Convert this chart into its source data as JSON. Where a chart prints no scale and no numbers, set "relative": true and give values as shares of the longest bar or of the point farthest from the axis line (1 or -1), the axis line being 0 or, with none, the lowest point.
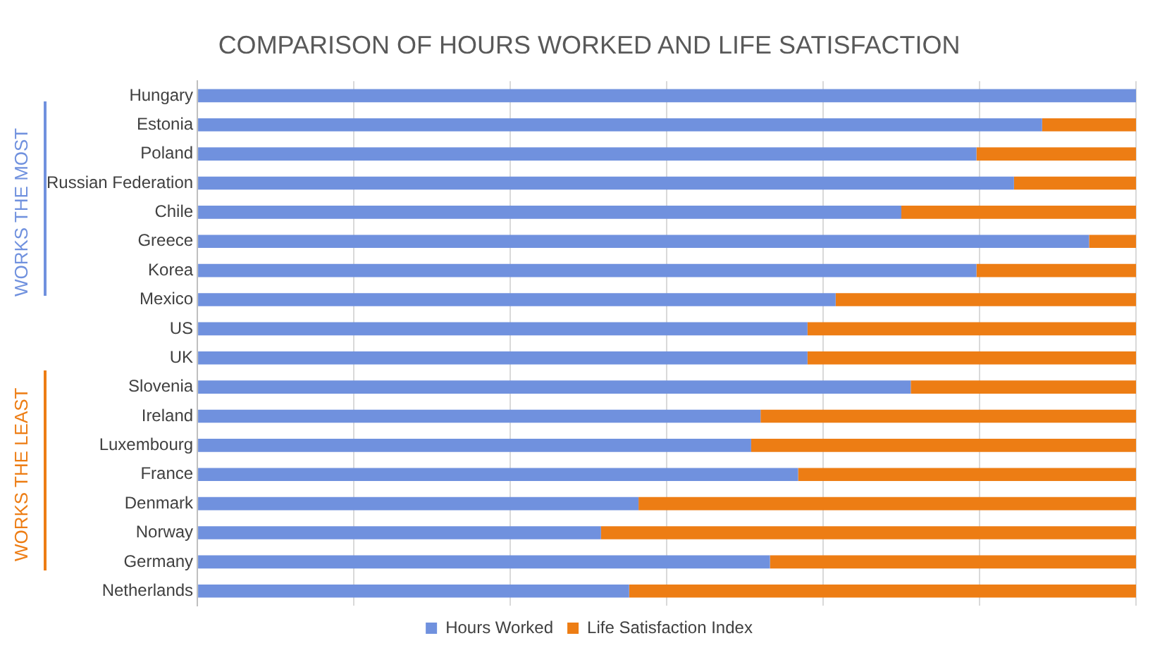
{
  "chart_data": {
    "type": "bar",
    "orientation": "horizontal",
    "stacked": true,
    "relative": true,
    "title": "COMPARISON OF HOURS WORKED AND LIFE SATISFACTION",
    "categories": [
      "Hungary",
      "Estonia",
      "Poland",
      "Russian Federation",
      "Chile",
      "Greece",
      "Korea",
      "Mexico",
      "US",
      "UK",
      "Slovenia",
      "Ireland",
      "Luxembourg",
      "France",
      "Denmark",
      "Norway",
      "Germany",
      "Netherlands"
    ],
    "series": [
      {
        "name": "Hours Worked",
        "color": "#7091de",
        "values": [
          1.0,
          0.9,
          0.83,
          0.87,
          0.75,
          0.95,
          0.83,
          0.68,
          0.65,
          0.65,
          0.76,
          0.6,
          0.59,
          0.64,
          0.47,
          0.43,
          0.61,
          0.46
        ]
      },
      {
        "name": "Life Satisfaction Index",
        "color": "#ed7d14",
        "values": [
          0.0,
          0.1,
          0.17,
          0.13,
          0.25,
          0.05,
          0.17,
          0.32,
          0.35,
          0.35,
          0.24,
          0.4,
          0.41,
          0.36,
          0.53,
          0.57,
          0.39,
          0.54
        ]
      }
    ],
    "annotations": [
      "WORKS THE MOST",
      "WORKS THE LEAST"
    ],
    "grid": "x",
    "legend": "bottom"
  }
}
